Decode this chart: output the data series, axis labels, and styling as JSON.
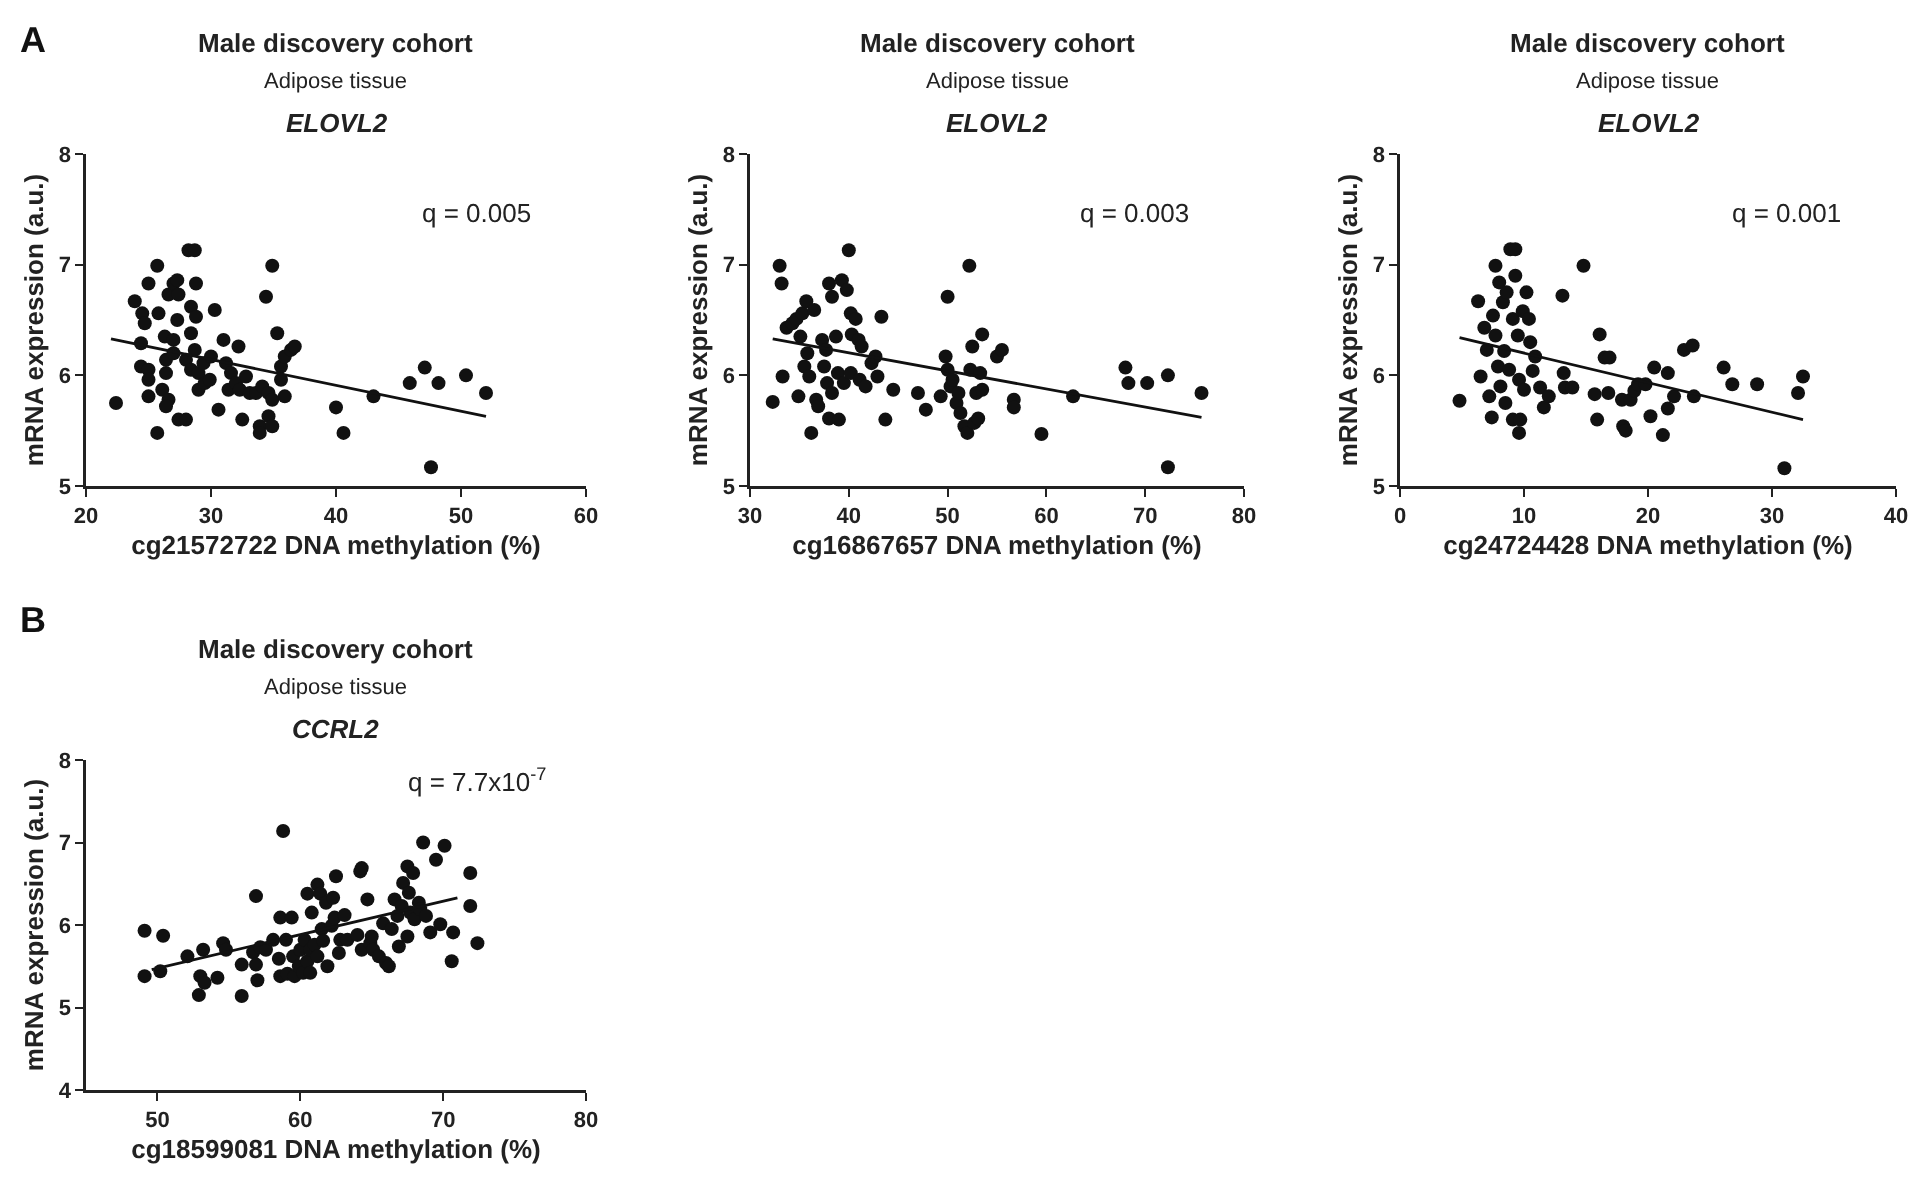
{
  "chart_data": [
    {
      "type": "scatter",
      "title": "Male discovery cohort",
      "subtitle": "Adipose tissue",
      "xlabel": "cg21572722 DNA methylation (%)",
      "ylabel": "mRNA expression (a.u.)",
      "annotations": [
        "A",
        "ELOVL2",
        "q = 0.005"
      ],
      "legend": false,
      "xlim": [
        20,
        60
      ],
      "xticks": [
        20,
        30,
        40,
        50,
        60
      ],
      "ylim": [
        5,
        8
      ],
      "yticks": [
        5,
        6,
        7,
        8
      ],
      "series": [
        {
          "marker": "circle",
          "color": "#111111",
          "x": [
            22.4,
            25.7,
            25.0,
            23.9,
            24.5,
            24.7,
            25.8,
            24.4,
            24.4,
            25.0,
            25.0,
            25.0,
            25.7,
            26.1,
            26.4,
            26.4,
            26.3,
            26.6,
            27.0,
            27.3,
            27.4,
            27.3,
            27.0,
            27.0,
            26.6,
            26.4,
            27.4,
            28.0,
            28.2,
            28.7,
            28.4,
            28.4,
            28.8,
            28.8,
            28.0,
            28.4,
            28.7,
            29.0,
            29.0,
            29.4,
            29.5,
            30.0,
            29.9,
            30.3,
            30.6,
            31.0,
            31.2,
            31.6,
            31.4,
            32.0,
            32.2,
            32.3,
            32.5,
            32.8,
            33.1,
            33.6,
            33.9,
            33.9,
            34.1,
            34.4,
            34.6,
            34.6,
            34.9,
            34.9,
            34.9,
            35.3,
            35.6,
            35.6,
            35.9,
            35.9,
            36.4,
            36.7,
            40.0,
            40.6,
            43.0,
            45.9,
            47.1,
            47.6,
            48.2,
            50.4,
            52.0
          ],
          "values": [
            5.75,
            6.99,
            6.83,
            6.67,
            6.56,
            6.47,
            6.56,
            6.29,
            6.08,
            6.05,
            5.96,
            5.81,
            5.48,
            5.87,
            6.02,
            6.14,
            6.35,
            6.73,
            6.83,
            6.86,
            6.73,
            6.5,
            6.32,
            6.2,
            5.78,
            5.72,
            5.6,
            5.6,
            7.13,
            7.13,
            6.62,
            6.38,
            6.83,
            6.53,
            6.14,
            6.05,
            6.23,
            6.02,
            5.87,
            6.11,
            5.93,
            6.17,
            5.96,
            6.59,
            5.69,
            6.32,
            6.11,
            6.02,
            5.87,
            5.93,
            6.26,
            5.87,
            5.6,
            5.99,
            5.84,
            5.84,
            5.54,
            5.48,
            5.9,
            6.71,
            5.84,
            5.63,
            5.54,
            6.99,
            5.78,
            6.38,
            6.08,
            5.96,
            6.17,
            5.81,
            6.23,
            6.26,
            5.71,
            5.48,
            5.81,
            5.93,
            6.07,
            5.17,
            5.93,
            6.0,
            5.84
          ]
        },
        {
          "type": "line",
          "color": "#111111",
          "x": [
            22,
            52
          ],
          "values": [
            6.33,
            5.63
          ]
        }
      ]
    },
    {
      "type": "scatter",
      "title": "Male discovery cohort",
      "subtitle": "Adipose tissue",
      "xlabel": "cg16867657 DNA methylation (%)",
      "ylabel": "mRNA expression (a.u.)",
      "annotations": [
        "ELOVL2",
        "q = 0.003"
      ],
      "legend": false,
      "xlim": [
        30,
        80
      ],
      "xticks": [
        30,
        40,
        50,
        60,
        70,
        80
      ],
      "ylim": [
        5,
        8
      ],
      "yticks": [
        5,
        6,
        7,
        8
      ],
      "series": [
        {
          "marker": "circle",
          "color": "#111111",
          "x": [
            32.3,
            33.0,
            33.2,
            33.3,
            33.7,
            34.3,
            34.7,
            34.9,
            35.1,
            35.3,
            35.5,
            35.7,
            35.8,
            36.0,
            36.2,
            36.5,
            36.7,
            36.9,
            37.3,
            37.5,
            37.7,
            37.8,
            38.0,
            38.0,
            38.3,
            38.3,
            38.7,
            38.9,
            39.0,
            39.3,
            39.5,
            39.8,
            40.0,
            40.2,
            40.2,
            40.3,
            40.7,
            41.0,
            41.1,
            41.3,
            41.7,
            42.3,
            42.7,
            42.9,
            43.3,
            43.7,
            44.5,
            47.0,
            47.8,
            49.3,
            49.8,
            50.0,
            50.0,
            50.3,
            50.5,
            50.9,
            51.1,
            51.3,
            51.7,
            52.0,
            52.2,
            52.3,
            52.5,
            52.7,
            52.9,
            53.1,
            53.3,
            53.5,
            53.5,
            55.0,
            55.5,
            56.7,
            56.7,
            59.5,
            62.7,
            68.0,
            68.3,
            70.2,
            72.3,
            72.3,
            75.7
          ],
          "values": [
            5.76,
            6.99,
            6.83,
            5.99,
            6.43,
            6.47,
            6.51,
            5.81,
            6.35,
            6.56,
            6.08,
            6.67,
            6.2,
            5.99,
            5.48,
            6.59,
            5.78,
            5.72,
            6.32,
            6.08,
            6.23,
            5.93,
            5.61,
            6.83,
            6.71,
            5.84,
            6.35,
            6.02,
            5.6,
            6.86,
            5.93,
            6.77,
            7.13,
            6.56,
            6.02,
            6.37,
            6.51,
            6.32,
            5.96,
            6.26,
            5.9,
            6.11,
            6.17,
            5.99,
            6.53,
            5.6,
            5.87,
            5.84,
            5.69,
            5.81,
            6.17,
            6.71,
            6.05,
            5.9,
            5.96,
            5.75,
            5.84,
            5.66,
            5.54,
            5.48,
            6.99,
            6.05,
            6.26,
            5.57,
            5.84,
            5.61,
            6.02,
            5.87,
            6.37,
            6.17,
            6.23,
            5.78,
            5.71,
            5.47,
            5.81,
            6.07,
            5.93,
            5.93,
            6.0,
            5.17,
            5.84
          ]
        },
        {
          "type": "line",
          "color": "#111111",
          "x": [
            32.3,
            75.7
          ],
          "values": [
            6.33,
            5.62
          ]
        }
      ]
    },
    {
      "type": "scatter",
      "title": "Male discovery cohort",
      "subtitle": "Adipose tissue",
      "xlabel": "cg24724428 DNA methylation (%)",
      "ylabel": "mRNA expression (a.u.)",
      "annotations": [
        "ELOVL2",
        "q = 0.001"
      ],
      "legend": false,
      "xlim": [
        0,
        40
      ],
      "xticks": [
        0,
        10,
        20,
        30,
        40
      ],
      "ylim": [
        5,
        8
      ],
      "yticks": [
        5,
        6,
        7,
        8
      ],
      "series": [
        {
          "marker": "circle",
          "color": "#111111",
          "x": [
            4.8,
            6.3,
            6.5,
            6.8,
            7.0,
            7.2,
            7.4,
            7.5,
            7.7,
            7.7,
            7.9,
            8.0,
            8.1,
            8.3,
            8.4,
            8.5,
            8.6,
            8.8,
            8.9,
            9.1,
            9.1,
            9.3,
            9.3,
            9.5,
            9.6,
            9.7,
            9.6,
            9.9,
            10.0,
            10.2,
            10.4,
            10.5,
            10.7,
            10.9,
            11.3,
            11.6,
            12.0,
            13.1,
            13.2,
            13.3,
            13.9,
            14.8,
            15.7,
            15.9,
            16.1,
            16.5,
            16.8,
            16.9,
            17.9,
            18.0,
            18.2,
            18.6,
            18.9,
            19.2,
            19.8,
            20.2,
            20.5,
            21.2,
            21.6,
            21.6,
            22.1,
            22.9,
            23.6,
            23.7,
            26.1,
            26.8,
            28.8,
            31.0,
            32.1,
            32.5
          ],
          "values": [
            5.77,
            6.67,
            5.99,
            6.43,
            6.23,
            5.81,
            5.62,
            6.54,
            6.99,
            6.36,
            6.08,
            6.84,
            5.9,
            6.66,
            6.22,
            5.75,
            6.75,
            6.05,
            7.14,
            6.51,
            5.6,
            7.14,
            6.9,
            6.36,
            5.96,
            5.6,
            5.48,
            6.58,
            5.87,
            6.75,
            6.51,
            6.3,
            6.04,
            6.17,
            5.89,
            5.71,
            5.81,
            6.72,
            6.02,
            5.89,
            5.89,
            6.99,
            5.83,
            5.6,
            6.37,
            6.16,
            5.84,
            6.16,
            5.78,
            5.54,
            5.5,
            5.78,
            5.86,
            5.92,
            5.92,
            5.63,
            6.07,
            5.46,
            5.7,
            6.02,
            5.81,
            6.23,
            6.27,
            5.81,
            6.07,
            5.92,
            5.92,
            5.16,
            5.84,
            5.99
          ]
        },
        {
          "type": "line",
          "color": "#111111",
          "x": [
            4.8,
            32.5
          ],
          "values": [
            6.34,
            5.6
          ]
        }
      ]
    },
    {
      "type": "scatter",
      "title": "Male discovery cohort",
      "subtitle": "Adipose tissue",
      "xlabel": "cg18599081 DNA methylation (%)",
      "ylabel": "mRNA expression (a.u.)",
      "annotations": [
        "B",
        "CCRL2",
        "q = 7.7x10$^{-7}$"
      ],
      "legend": false,
      "xlim": [
        45,
        80
      ],
      "xticks": [
        50,
        60,
        70,
        80
      ],
      "ylim": [
        4,
        8
      ],
      "yticks": [
        4,
        5,
        6,
        7,
        8
      ],
      "series": [
        {
          "marker": "circle",
          "color": "#111111",
          "x": [
            49.1,
            49.1,
            50.2,
            50.4,
            52.1,
            52.9,
            53.0,
            53.2,
            53.3,
            54.2,
            54.6,
            54.8,
            55.9,
            55.9,
            56.7,
            56.9,
            56.9,
            57.0,
            57.2,
            57.6,
            58.1,
            58.5,
            58.6,
            58.6,
            58.8,
            59.0,
            59.1,
            59.4,
            59.5,
            59.6,
            59.9,
            60.0,
            60.2,
            60.3,
            60.5,
            60.5,
            60.7,
            60.7,
            60.8,
            61.0,
            61.2,
            61.2,
            61.4,
            61.5,
            61.6,
            61.8,
            61.9,
            62.2,
            62.3,
            62.4,
            62.5,
            62.7,
            62.8,
            63.1,
            63.3,
            64.0,
            64.2,
            64.3,
            64.3,
            64.7,
            64.9,
            65.0,
            65.1,
            65.5,
            65.8,
            66.0,
            66.2,
            66.4,
            66.6,
            66.8,
            66.9,
            67.1,
            67.2,
            67.5,
            67.5,
            67.6,
            67.7,
            67.9,
            68.0,
            68.3,
            68.4,
            68.6,
            68.8,
            69.1,
            69.5,
            69.8,
            70.1,
            70.6,
            70.7,
            71.9,
            71.9,
            72.4
          ],
          "values": [
            5.93,
            5.38,
            5.44,
            5.87,
            5.62,
            5.15,
            5.38,
            5.7,
            5.3,
            5.36,
            5.78,
            5.7,
            5.14,
            5.52,
            5.67,
            6.35,
            5.52,
            5.33,
            5.73,
            5.7,
            5.82,
            5.59,
            5.38,
            6.09,
            7.14,
            5.82,
            5.41,
            6.09,
            5.62,
            5.38,
            5.5,
            5.7,
            5.42,
            5.82,
            5.56,
            6.38,
            5.7,
            5.42,
            6.15,
            5.76,
            6.49,
            5.62,
            6.38,
            5.95,
            5.81,
            6.27,
            5.5,
            5.99,
            6.33,
            6.09,
            6.59,
            5.66,
            5.82,
            6.12,
            5.82,
            5.88,
            6.65,
            6.69,
            5.7,
            6.31,
            5.78,
            5.86,
            5.7,
            5.62,
            6.02,
            5.54,
            5.5,
            5.95,
            6.31,
            6.11,
            5.74,
            6.23,
            6.51,
            5.86,
            6.71,
            6.39,
            6.15,
            6.63,
            6.07,
            6.27,
            6.19,
            7.0,
            6.11,
            5.91,
            6.79,
            6.01,
            6.96,
            5.56,
            5.91,
            6.63,
            6.23,
            5.78
          ]
        },
        {
          "type": "line",
          "color": "#111111",
          "x": [
            49.6,
            71.0
          ],
          "values": [
            5.46,
            6.33
          ]
        }
      ]
    }
  ]
}
